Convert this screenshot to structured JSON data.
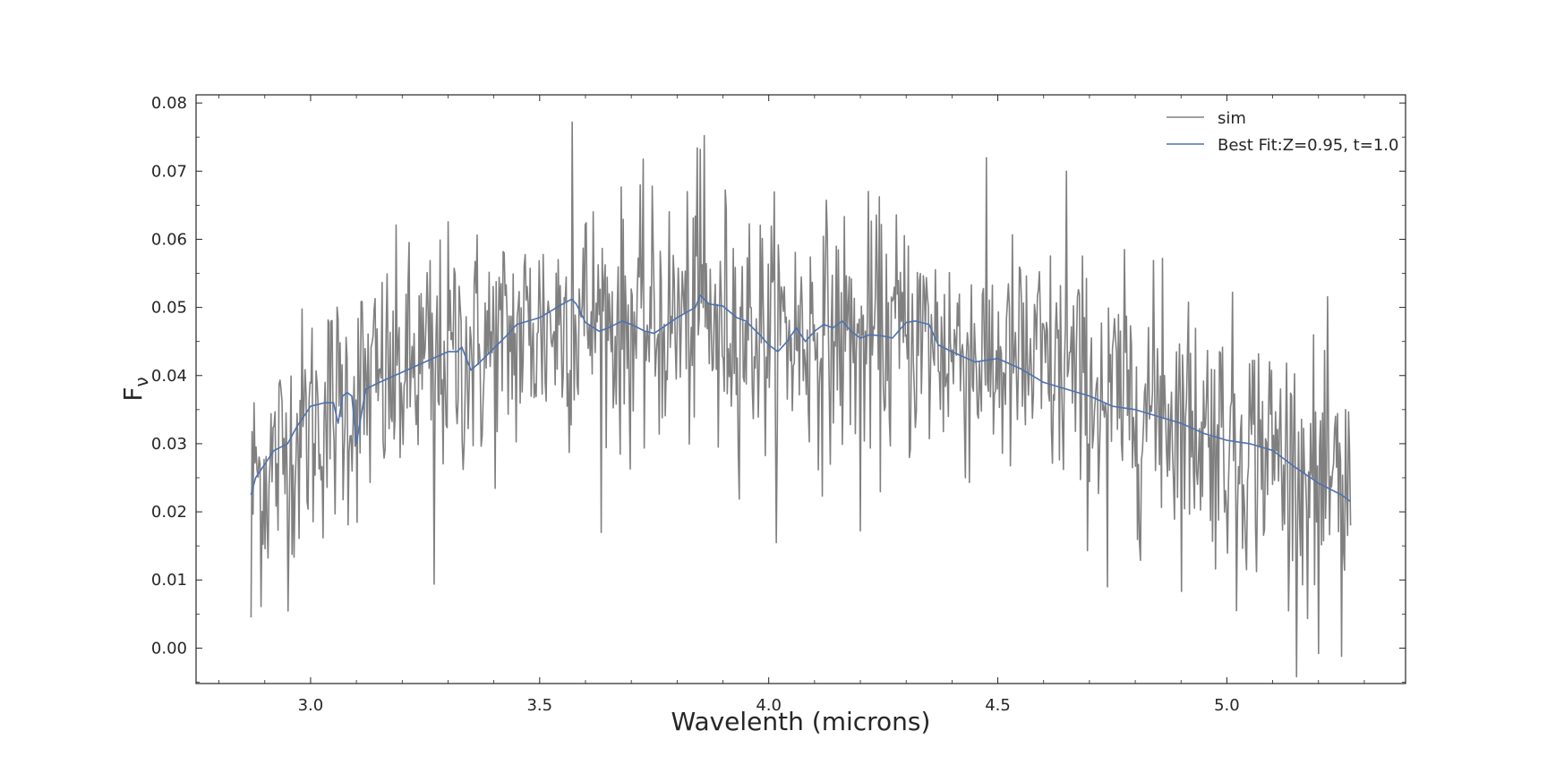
{
  "chart_data": {
    "type": "line",
    "title": "",
    "xlabel": "Wavelenth (microns)",
    "ylabel": "F",
    "ylabel_subscript": "ν",
    "xlim": [
      2.75,
      5.39
    ],
    "ylim": [
      -0.0052,
      0.0812
    ],
    "xticks": [
      3.0,
      3.5,
      4.0,
      4.5,
      5.0
    ],
    "xtick_labels": [
      "3.0",
      "3.5",
      "4.0",
      "4.5",
      "5.0"
    ],
    "yticks": [
      0.0,
      0.01,
      0.02,
      0.03,
      0.04,
      0.05,
      0.06,
      0.07,
      0.08
    ],
    "ytick_labels": [
      "0.00",
      "0.01",
      "0.02",
      "0.03",
      "0.04",
      "0.05",
      "0.06",
      "0.07",
      "0.08"
    ],
    "grid": false,
    "legend": {
      "placement": "top-right"
    },
    "series": [
      {
        "name": "sim",
        "color": "#808080",
        "x_start": 2.87,
        "x_end": 5.27,
        "n_points": 1100,
        "sim_anchor_x": [
          2.87,
          2.88,
          3.27,
          3.57,
          3.85,
          3.86,
          3.89,
          3.89,
          4.2,
          4.65,
          4.74,
          4.86,
          5.02,
          5.2,
          5.25,
          5.26,
          5.27
        ],
        "sim_anchor_y": [
          0.0045,
          0.0295,
          0.0094,
          0.0772,
          0.0732,
          0.0752,
          0.0162,
          0.0295,
          0.0172,
          0.07,
          0.009,
          0.0572,
          0.0055,
          -0.0008,
          -0.0012,
          0.035,
          0.018
        ],
        "envelope_x": [
          2.87,
          2.95,
          3.0,
          3.1,
          3.2,
          3.3,
          3.4,
          3.5,
          3.6,
          3.7,
          3.8,
          3.9,
          4.0,
          4.1,
          4.2,
          4.3,
          4.4,
          4.5,
          4.6,
          4.7,
          4.8,
          4.9,
          5.0,
          5.1,
          5.2,
          5.27
        ],
        "envelope_mean": [
          0.023,
          0.029,
          0.033,
          0.037,
          0.04,
          0.043,
          0.044,
          0.047,
          0.049,
          0.047,
          0.048,
          0.049,
          0.046,
          0.046,
          0.046,
          0.046,
          0.044,
          0.042,
          0.041,
          0.038,
          0.036,
          0.034,
          0.031,
          0.029,
          0.024,
          0.021
        ],
        "noise_amplitude": 0.009
      },
      {
        "name": "Best Fit:Z=0.95, t=1.0",
        "color": "#4c72b0",
        "x": [
          2.87,
          2.88,
          2.9,
          2.92,
          2.95,
          2.97,
          3.0,
          3.03,
          3.05,
          3.06,
          3.07,
          3.08,
          3.09,
          3.1,
          3.12,
          3.15,
          3.2,
          3.25,
          3.3,
          3.32,
          3.33,
          3.35,
          3.37,
          3.4,
          3.43,
          3.45,
          3.5,
          3.55,
          3.57,
          3.58,
          3.6,
          3.63,
          3.65,
          3.68,
          3.7,
          3.73,
          3.75,
          3.8,
          3.84,
          3.85,
          3.87,
          3.9,
          3.93,
          3.95,
          3.98,
          4.0,
          4.02,
          4.04,
          4.06,
          4.08,
          4.1,
          4.12,
          4.14,
          4.16,
          4.18,
          4.2,
          4.22,
          4.25,
          4.27,
          4.3,
          4.32,
          4.35,
          4.37,
          4.4,
          4.45,
          4.5,
          4.55,
          4.6,
          4.65,
          4.7,
          4.75,
          4.8,
          4.85,
          4.9,
          4.95,
          5.0,
          5.05,
          5.1,
          5.15,
          5.2,
          5.25,
          5.27
        ],
        "y": [
          0.0225,
          0.025,
          0.027,
          0.029,
          0.03,
          0.0325,
          0.0355,
          0.036,
          0.036,
          0.033,
          0.037,
          0.0375,
          0.037,
          0.03,
          0.038,
          0.039,
          0.0405,
          0.042,
          0.0435,
          0.0435,
          0.0442,
          0.0408,
          0.042,
          0.044,
          0.046,
          0.0475,
          0.0485,
          0.0505,
          0.0512,
          0.0505,
          0.0478,
          0.0465,
          0.047,
          0.048,
          0.0475,
          0.0465,
          0.0462,
          0.0485,
          0.05,
          0.0518,
          0.0505,
          0.0502,
          0.0485,
          0.048,
          0.046,
          0.0445,
          0.0435,
          0.045,
          0.047,
          0.045,
          0.0465,
          0.0475,
          0.047,
          0.048,
          0.0465,
          0.0455,
          0.046,
          0.0458,
          0.0455,
          0.0478,
          0.048,
          0.0475,
          0.0445,
          0.0435,
          0.042,
          0.0425,
          0.041,
          0.039,
          0.038,
          0.037,
          0.0355,
          0.035,
          0.034,
          0.033,
          0.0315,
          0.0305,
          0.03,
          0.029,
          0.0265,
          0.0242,
          0.0225,
          0.0215
        ]
      }
    ]
  }
}
